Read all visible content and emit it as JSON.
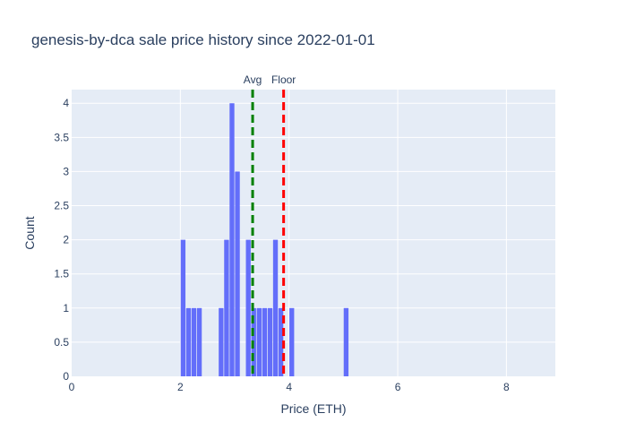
{
  "chart_data": {
    "type": "bar",
    "title": "genesis-by-dca sale price history since 2022-01-01",
    "xlabel": "Price (ETH)",
    "ylabel": "Count",
    "xlim": [
      0,
      8.9
    ],
    "ylim": [
      0,
      4.2
    ],
    "xticks": [
      "0",
      "2",
      "4",
      "6",
      "8"
    ],
    "xtick_values": [
      0,
      2,
      4,
      6,
      8
    ],
    "yticks": [
      "0",
      "0.5",
      "1",
      "1.5",
      "2",
      "2.5",
      "3",
      "3.5",
      "4"
    ],
    "ytick_values": [
      0,
      0.5,
      1,
      1.5,
      2,
      2.5,
      3,
      3.5,
      4
    ],
    "bin_width": 0.1,
    "bins": [
      {
        "x": 2.0,
        "count": 2
      },
      {
        "x": 2.1,
        "count": 1
      },
      {
        "x": 2.2,
        "count": 1
      },
      {
        "x": 2.3,
        "count": 1
      },
      {
        "x": 2.7,
        "count": 1
      },
      {
        "x": 2.8,
        "count": 2
      },
      {
        "x": 2.9,
        "count": 4
      },
      {
        "x": 3.0,
        "count": 3
      },
      {
        "x": 3.2,
        "count": 2
      },
      {
        "x": 3.3,
        "count": 1
      },
      {
        "x": 3.4,
        "count": 1
      },
      {
        "x": 3.5,
        "count": 1
      },
      {
        "x": 3.6,
        "count": 1
      },
      {
        "x": 3.7,
        "count": 2
      },
      {
        "x": 3.8,
        "count": 1
      },
      {
        "x": 4.0,
        "count": 1
      },
      {
        "x": 5.0,
        "count": 1
      }
    ],
    "vlines": [
      {
        "label": "Avg",
        "x": 3.33,
        "color": "#008000"
      },
      {
        "label": "Floor",
        "x": 3.9,
        "color": "#ff0000"
      }
    ],
    "bar_color": "#636efa",
    "plot_bg": "#e5ecf6",
    "grid": true
  }
}
